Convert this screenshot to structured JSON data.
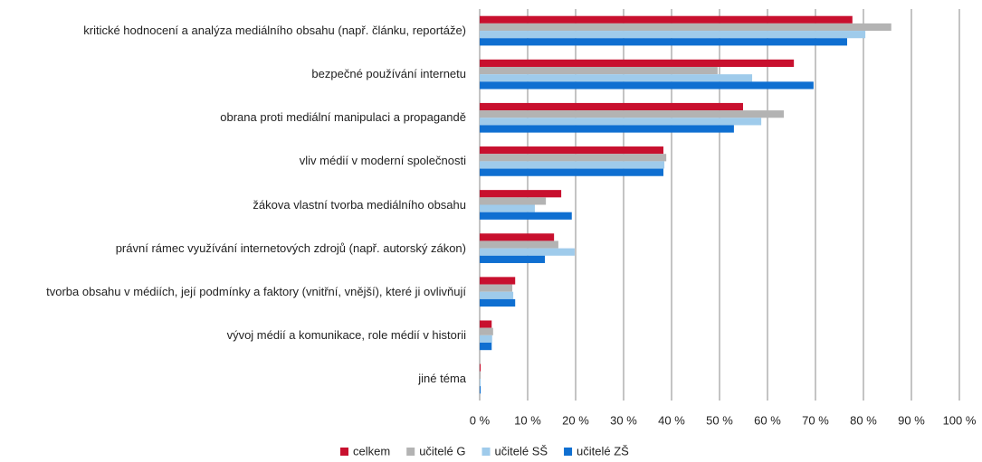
{
  "chart_data": {
    "type": "hbar",
    "categories": [
      "kritické hodnocení a analýza mediálního obsahu (např. článku, reportáže)",
      "bezpečné používání internetu",
      "obrana proti mediální manipulaci a propagandě",
      "vliv médií v moderní společnosti",
      "žákova vlastní tvorba mediálního obsahu",
      "právní rámec využívání internetových zdrojů (např. autorský zákon)",
      "tvorba obsahu v médiích, její podmínky a faktory (vnitřní, vnější), které ji ovlivňují",
      "vývoj médií a komunikace, role médií v historii",
      "jiné téma"
    ],
    "series": [
      {
        "name": "celkem",
        "color": "#c8102e",
        "values": [
          77.7,
          65.5,
          54.9,
          38.3,
          17,
          15.5,
          7.4,
          2.5,
          0.2
        ]
      },
      {
        "name": "učitelé G",
        "color": "#b3b3b3",
        "values": [
          85.8,
          49.6,
          63.4,
          38.9,
          13.8,
          16.4,
          6.8,
          2.8,
          0.2
        ]
      },
      {
        "name": "učitelé SŠ",
        "color": "#9fcbeb",
        "values": [
          80.4,
          56.8,
          58.7,
          38.5,
          11.5,
          19.8,
          7,
          2.6,
          0.2
        ]
      },
      {
        "name": "učitelé ZŠ",
        "color": "#0f6fd1",
        "values": [
          76.6,
          69.6,
          53,
          38.3,
          19.2,
          13.6,
          7.4,
          2.5,
          0.2
        ]
      }
    ],
    "xlim": [
      0,
      100
    ],
    "xticks": [
      {
        "value": 0,
        "label": "0 %"
      },
      {
        "value": 10,
        "label": "10 %"
      },
      {
        "value": 20,
        "label": "20 %"
      },
      {
        "value": 30,
        "label": "30 %"
      },
      {
        "value": 40,
        "label": "40 %"
      },
      {
        "value": 50,
        "label": "50 %"
      },
      {
        "value": 60,
        "label": "60 %"
      },
      {
        "value": 70,
        "label": "70 %"
      },
      {
        "value": 80,
        "label": "80 %"
      },
      {
        "value": 90,
        "label": "90 %"
      },
      {
        "value": 100,
        "label": "100 %"
      }
    ],
    "grid": true,
    "legend": "bottom"
  }
}
